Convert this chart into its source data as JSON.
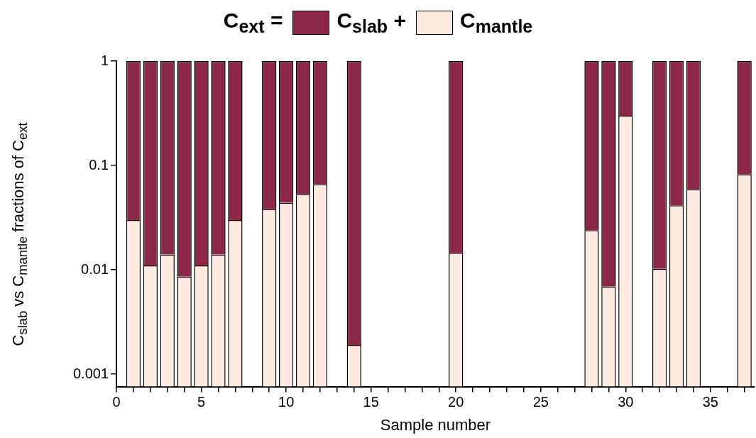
{
  "chart_data": {
    "type": "bar",
    "title": "C$_{ext}$ =",
    "xlabel": "Sample number",
    "ylabel": "C$_{slab}$ vs C$_{mantle}$ fractions of C$_{ext}$",
    "x": [
      1,
      2,
      3,
      4,
      5,
      6,
      7,
      9,
      10,
      11,
      12,
      14,
      20,
      28,
      29,
      30,
      32,
      33,
      34,
      37
    ],
    "stacked": true,
    "log": "y",
    "legend": "top",
    "series": [
      {
        "name": "C$_{mantle}$",
        "color": "#fdebe0",
        "values": [
          0.03,
          0.011,
          0.014,
          0.0086,
          0.011,
          0.014,
          0.03,
          0.038,
          0.044,
          0.053,
          0.066,
          0.0019,
          0.0145,
          0.024,
          0.0069,
          0.3,
          0.0102,
          0.0415,
          0.059,
          0.082
        ]
      },
      {
        "name": "C$_{slab}$ +",
        "color": "#8b2847",
        "values": [
          0.97,
          0.989,
          0.986,
          0.9914,
          0.989,
          0.986,
          0.97,
          0.962,
          0.956,
          0.947,
          0.934,
          0.9981,
          0.9855,
          0.976,
          0.9931,
          0.7,
          0.9898,
          0.9585,
          0.941,
          0.918
        ]
      }
    ],
    "xlim": [
      0,
      37.6
    ],
    "xticks": [
      0,
      {
        "value": 1,
        "label": null
      },
      {
        "value": 2,
        "label": null
      },
      {
        "value": 3,
        "label": null
      },
      {
        "value": 4,
        "label": null
      },
      5,
      {
        "value": 6,
        "label": null
      },
      {
        "value": 7,
        "label": null
      },
      {
        "value": 8,
        "label": null
      },
      {
        "value": 9,
        "label": null
      },
      10,
      {
        "value": 11,
        "label": null
      },
      {
        "value": 12,
        "label": null
      },
      {
        "value": 13,
        "label": null
      },
      {
        "value": 14,
        "label": null
      },
      15,
      {
        "value": 16,
        "label": null
      },
      {
        "value": 17,
        "label": null
      },
      {
        "value": 18,
        "label": null
      },
      {
        "value": 19,
        "label": null
      },
      20,
      {
        "value": 21,
        "label": null
      },
      {
        "value": 22,
        "label": null
      },
      {
        "value": 23,
        "label": null
      },
      {
        "value": 24,
        "label": null
      },
      25,
      {
        "value": 26,
        "label": null
      },
      {
        "value": 27,
        "label": null
      },
      {
        "value": 28,
        "label": null
      },
      {
        "value": 29,
        "label": null
      },
      30,
      {
        "value": 31,
        "label": null
      },
      {
        "value": 32,
        "label": null
      },
      {
        "value": 33,
        "label": null
      },
      {
        "value": 34,
        "label": null
      },
      35,
      {
        "value": 36,
        "label": null
      },
      {
        "value": 37,
        "label": null
      }
    ],
    "ylim": [
      0.00076,
      1
    ],
    "yticks": [
      0.001,
      0.01,
      0.1,
      1
    ],
    "grid": false
  }
}
